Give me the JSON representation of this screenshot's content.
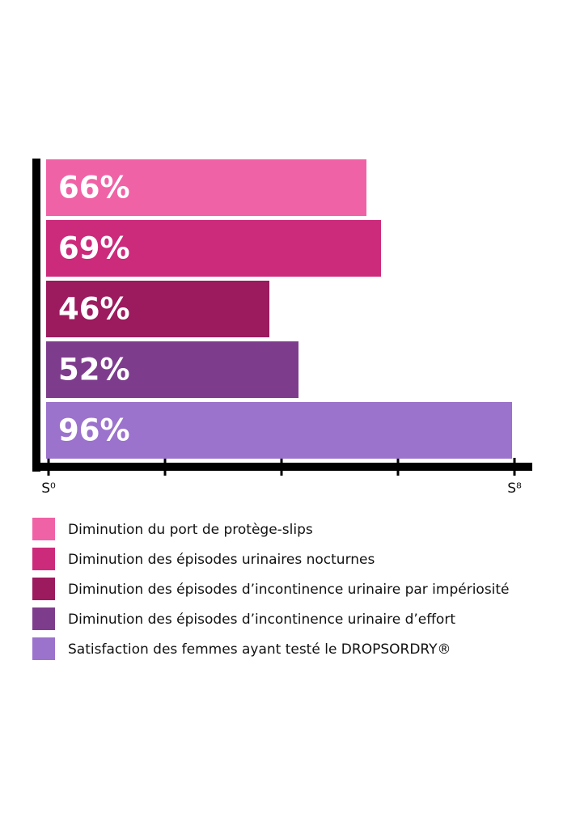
{
  "chart_data": {
    "type": "bar",
    "orientation": "horizontal",
    "categories": [
      "Diminution du port de protège-slips",
      "Diminution des épisodes urinaires nocturnes",
      "Diminution des épisodes d’incontinence urinaire par impériosité",
      "Diminution des épisodes d’incontinence urinaire d’effort",
      "Satisfaction des femmes ayant testé le DROPSORDRY®"
    ],
    "values": [
      66,
      69,
      46,
      52,
      96
    ],
    "value_labels": [
      "66%",
      "69%",
      "46%",
      "52%",
      "96%"
    ],
    "colors": [
      "#f062a6",
      "#cc2a7b",
      "#9c1a5e",
      "#7e3d8c",
      "#9b72cc"
    ],
    "xlim": [
      0,
      96
    ],
    "xticks": [
      {
        "value": 0,
        "label": "S⁰"
      },
      {
        "value": 24
      },
      {
        "value": 48
      },
      {
        "value": 72
      },
      {
        "value": 96,
        "label": "S⁸"
      }
    ]
  }
}
